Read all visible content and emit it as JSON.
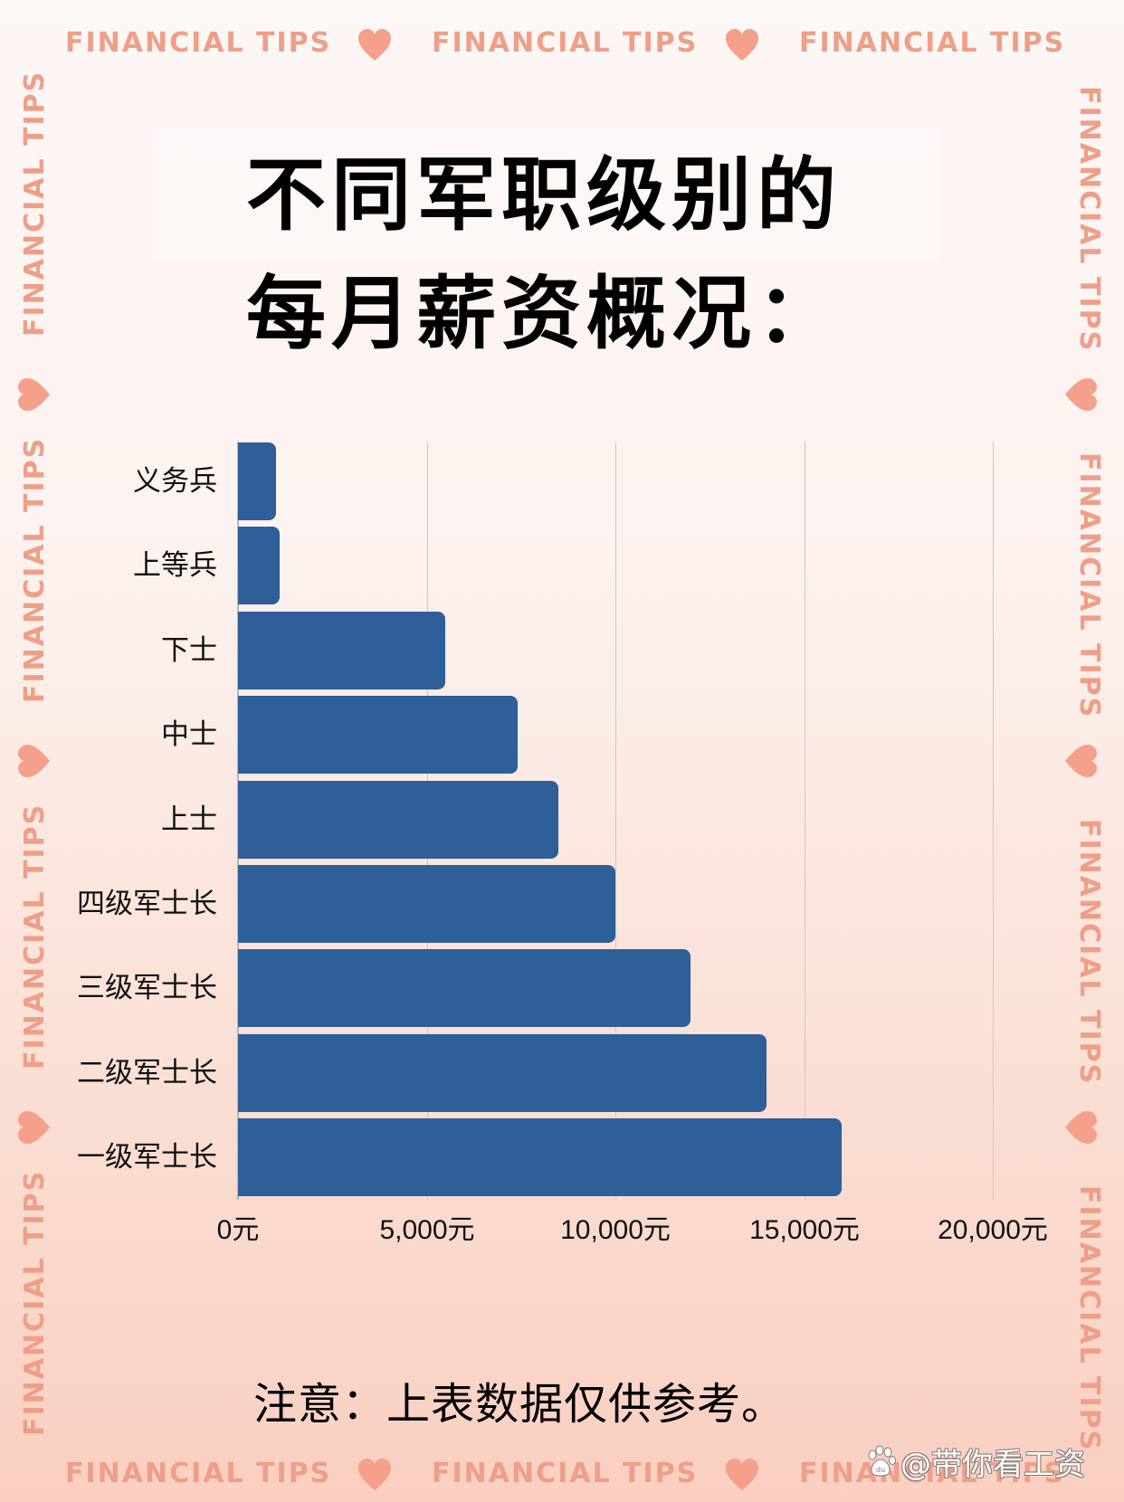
{
  "decor": {
    "band_text": "FINANCIAL TIPS",
    "band_color": "#ef9f88",
    "heart_color": "#f5a08a"
  },
  "title": {
    "line1": "不同军职级别的",
    "line2": "每月薪资概况："
  },
  "note": "注意：上表数据仅供参考。",
  "watermark": {
    "icon": "baidu-paw-icon",
    "text": "@带你看工资"
  },
  "chart_data": {
    "type": "bar",
    "orientation": "horizontal",
    "title": "不同军职级别的每月薪资概况：",
    "categories": [
      "义务兵",
      "上等兵",
      "下士",
      "中士",
      "上士",
      "四级军士长",
      "三级军士长",
      "二级军士长",
      "一级军士长"
    ],
    "values": [
      1000,
      1100,
      5500,
      7400,
      8500,
      10000,
      12000,
      14000,
      16000
    ],
    "xlabel": "",
    "ylabel": "",
    "unit": "元",
    "xlim": [
      0,
      20000
    ],
    "xticks": [
      0,
      5000,
      10000,
      15000,
      20000
    ],
    "xtick_labels": [
      "0元",
      "5,000元",
      "10,000元",
      "15,000元",
      "20,000元"
    ],
    "grid": "vertical",
    "legend": "none",
    "bar_color": "#2f5f98",
    "annotation": "注意：上表数据仅供参考。"
  }
}
